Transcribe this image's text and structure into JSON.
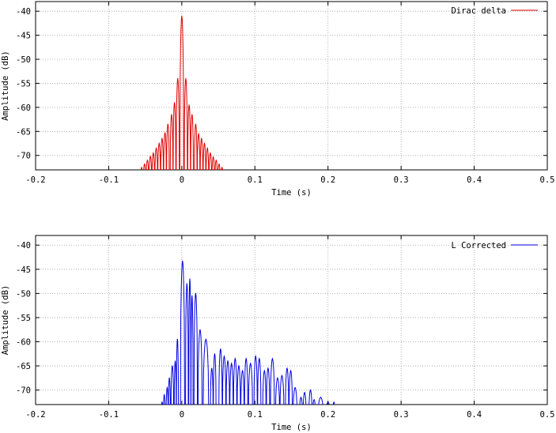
{
  "chart_data": [
    {
      "type": "line",
      "xlabel": "Time (s)",
      "ylabel": "Amplitude (dB)",
      "xlim": [
        -0.2,
        0.5
      ],
      "ylim": [
        -73,
        -38
      ],
      "xticks": [
        -0.2,
        -0.1,
        0,
        0.1,
        0.2,
        0.3,
        0.4,
        0.5
      ],
      "xtick_labels": [
        "-0.2",
        "-0.1",
        "0",
        "0.1",
        "0.2",
        "0.3",
        "0.4",
        "0.5"
      ],
      "yticks": [
        -40,
        -45,
        -50,
        -55,
        -60,
        -65,
        -70
      ],
      "ytick_labels": [
        "-40",
        "-45",
        "-50",
        "-55",
        "-60",
        "-65",
        "-70"
      ],
      "grid": true,
      "legend_position": "top-right",
      "series": [
        {
          "name": "Dirac delta",
          "color": "#e00000",
          "lobes": [
            [
              -0.055,
              -72.5
            ],
            [
              -0.051,
              -71.8
            ],
            [
              -0.047,
              -71.0
            ],
            [
              -0.043,
              -70.2
            ],
            [
              -0.039,
              -69.5
            ],
            [
              -0.035,
              -68.5
            ],
            [
              -0.031,
              -67.5
            ],
            [
              -0.027,
              -66.5
            ],
            [
              -0.023,
              -65.3
            ],
            [
              -0.019,
              -63.5
            ],
            [
              -0.014,
              -61.5
            ],
            [
              -0.01,
              -59.0
            ],
            [
              -0.0055,
              -54.0
            ],
            [
              0.0,
              -41.0
            ],
            [
              0.0055,
              -54.0
            ],
            [
              0.01,
              -59.5
            ],
            [
              0.014,
              -61.5
            ],
            [
              0.019,
              -63.5
            ],
            [
              0.023,
              -65.5
            ],
            [
              0.027,
              -66.5
            ],
            [
              0.031,
              -67.5
            ],
            [
              0.035,
              -68.5
            ],
            [
              0.039,
              -69.5
            ],
            [
              0.043,
              -70.3
            ],
            [
              0.047,
              -71.0
            ],
            [
              0.051,
              -71.8
            ],
            [
              0.055,
              -72.5
            ]
          ]
        }
      ]
    },
    {
      "type": "line",
      "xlabel": "Time (s)",
      "ylabel": "Amplitude (dB)",
      "xlim": [
        -0.2,
        0.5
      ],
      "ylim": [
        -73,
        -38
      ],
      "xticks": [
        -0.2,
        -0.1,
        0,
        0.1,
        0.2,
        0.3,
        0.4,
        0.5
      ],
      "xtick_labels": [
        "-0.2",
        "-0.1",
        "0",
        "0.1",
        "0.2",
        "0.3",
        "0.4",
        "0.5"
      ],
      "yticks": [
        -40,
        -45,
        -50,
        -55,
        -60,
        -65,
        -70
      ],
      "ytick_labels": [
        "-40",
        "-45",
        "-50",
        "-55",
        "-60",
        "-65",
        "-70"
      ],
      "grid": true,
      "legend_position": "top-right",
      "series": [
        {
          "name": "L Corrected",
          "color": "#0000e0",
          "lobes": [
            [
              -0.027,
              -72.5
            ],
            [
              -0.024,
              -71.0
            ],
            [
              -0.02,
              -69.5
            ],
            [
              -0.017,
              -67.5
            ],
            [
              -0.013,
              -65.0
            ],
            [
              -0.009,
              -64.0
            ],
            [
              -0.006,
              -59.5
            ],
            [
              0.001,
              -43.3
            ],
            [
              0.007,
              -48.0
            ],
            [
              0.011,
              -47.0
            ],
            [
              0.014,
              -50.5
            ],
            [
              0.019,
              -50.0
            ],
            [
              0.025,
              -57.5
            ],
            [
              0.033,
              -59.5
            ],
            [
              0.041,
              -65.5
            ],
            [
              0.045,
              -62.5
            ],
            [
              0.053,
              -61.5
            ],
            [
              0.058,
              -63.0
            ],
            [
              0.063,
              -64.0
            ],
            [
              0.068,
              -64.5
            ],
            [
              0.073,
              -63.5
            ],
            [
              0.078,
              -65.0
            ],
            [
              0.083,
              -66.0
            ],
            [
              0.088,
              -63.5
            ],
            [
              0.094,
              -64.5
            ],
            [
              0.101,
              -63.0
            ],
            [
              0.106,
              -63.5
            ],
            [
              0.113,
              -66.0
            ],
            [
              0.118,
              -65.5
            ],
            [
              0.124,
              -63.5
            ],
            [
              0.131,
              -67.5
            ],
            [
              0.137,
              -67.0
            ],
            [
              0.144,
              -65.5
            ],
            [
              0.149,
              -66.0
            ],
            [
              0.155,
              -69.5
            ],
            [
              0.163,
              -71.5
            ],
            [
              0.168,
              -70.5
            ],
            [
              0.176,
              -70.0
            ],
            [
              0.181,
              -72.0
            ],
            [
              0.19,
              -71.5
            ],
            [
              0.2,
              -72.5
            ],
            [
              0.208,
              -72.5
            ]
          ]
        }
      ]
    }
  ]
}
